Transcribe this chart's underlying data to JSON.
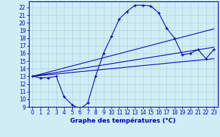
{
  "xlabel": "Graphe des températures (°C)",
  "xlim": [
    -0.5,
    23.5
  ],
  "ylim": [
    9,
    22.8
  ],
  "yticks": [
    9,
    10,
    11,
    12,
    13,
    14,
    15,
    16,
    17,
    18,
    19,
    20,
    21,
    22
  ],
  "xticks": [
    0,
    1,
    2,
    3,
    4,
    5,
    6,
    7,
    8,
    9,
    10,
    11,
    12,
    13,
    14,
    15,
    16,
    17,
    18,
    19,
    20,
    21,
    22,
    23
  ],
  "bg_color": "#d0ecf4",
  "grid_color": "#a8d4e0",
  "line_color": "#0000bb",
  "curve": {
    "x": [
      0,
      1,
      2,
      3,
      4,
      5,
      6,
      7,
      8,
      9,
      10,
      11,
      12,
      13,
      14,
      15,
      16,
      17,
      18,
      19,
      20,
      21,
      22,
      23
    ],
    "y": [
      13.0,
      12.8,
      12.8,
      13.0,
      10.3,
      9.3,
      8.7,
      9.5,
      13.0,
      16.0,
      18.2,
      20.5,
      21.5,
      22.3,
      22.3,
      22.2,
      21.3,
      19.3,
      18.0,
      15.8,
      16.0,
      16.5,
      15.3,
      16.5
    ]
  },
  "diag_lines": [
    {
      "x": [
        0,
        23
      ],
      "y": [
        13.0,
        19.2
      ]
    },
    {
      "x": [
        0,
        23
      ],
      "y": [
        13.0,
        16.8
      ]
    },
    {
      "x": [
        0,
        23
      ],
      "y": [
        13.0,
        15.3
      ]
    }
  ],
  "figsize": [
    3.2,
    2.0
  ],
  "dpi": 100,
  "tick_fontsize": 5.5,
  "xlabel_fontsize": 6.5
}
